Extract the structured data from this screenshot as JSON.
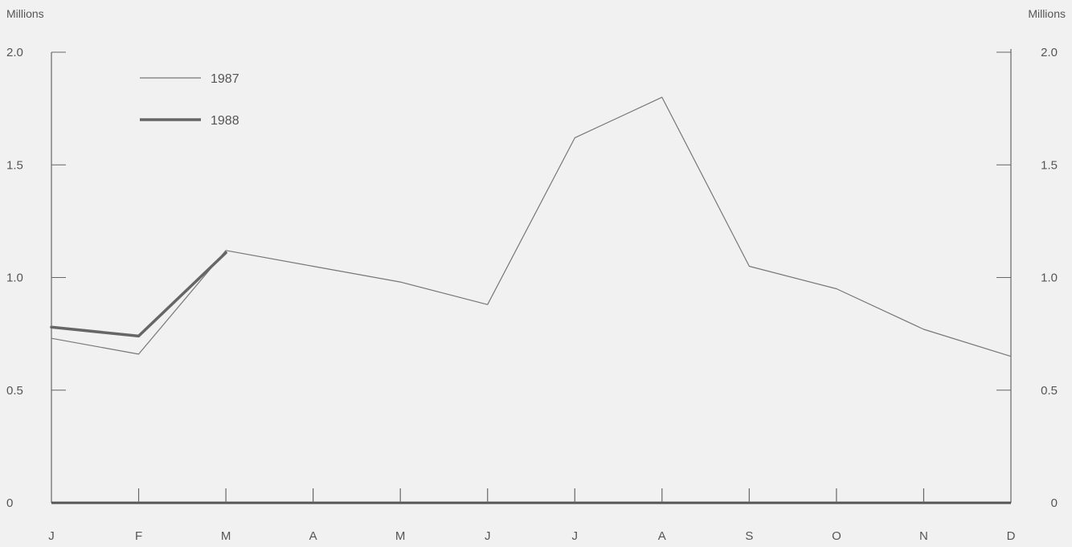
{
  "chart_data": {
    "type": "line",
    "title": "",
    "unit_left": "Millions",
    "unit_right": "Millions",
    "categories": [
      "J",
      "F",
      "M",
      "A",
      "M",
      "J",
      "J",
      "A",
      "S",
      "O",
      "N",
      "D"
    ],
    "yticks": [
      "0",
      "0.5",
      "1.0",
      "1.5",
      "2.0"
    ],
    "ylim": [
      0,
      2.0
    ],
    "grid": false,
    "legend_position": "top-left",
    "series": [
      {
        "name": "1987",
        "color": "#777777",
        "style": "thin",
        "values": [
          0.73,
          0.66,
          1.12,
          1.05,
          0.98,
          0.88,
          1.62,
          1.8,
          1.05,
          0.95,
          0.77,
          0.65
        ]
      },
      {
        "name": "1988",
        "color": "#666666",
        "style": "thick",
        "values": [
          0.78,
          0.74,
          1.11,
          null,
          null,
          null,
          null,
          null,
          null,
          null,
          null,
          null
        ]
      }
    ]
  }
}
